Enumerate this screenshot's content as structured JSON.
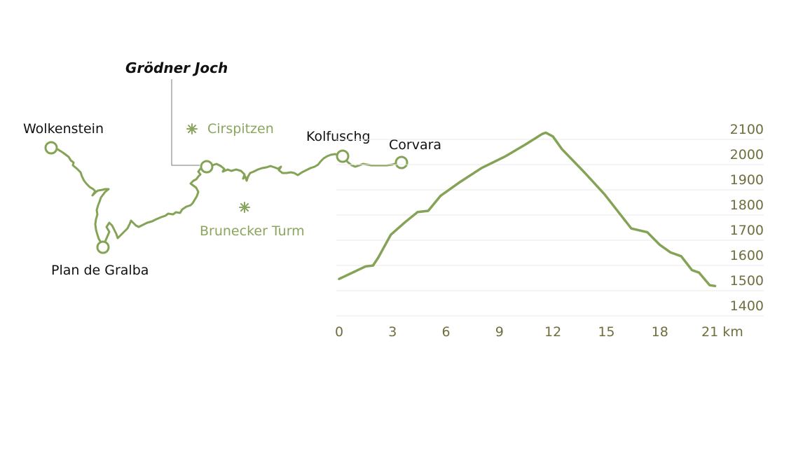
{
  "colors": {
    "route": "#84a356",
    "axis_text": "#6f6e3f",
    "grid": "#e8e8e8",
    "label": "#111111",
    "peak": "#8aa55e"
  },
  "map": {
    "places": [
      "Wolkenstein",
      "Plan de Gralba",
      "Kolfuschg",
      "Corvara"
    ],
    "pass": "Grödner Joch",
    "peaks": [
      "Cirspitzen",
      "Brunecker Turm"
    ],
    "peak_icon": "asterisk-peak-icon"
  },
  "chart_data": {
    "type": "line",
    "x_unit": "km",
    "x_ticks": [
      0,
      3,
      6,
      9,
      12,
      15,
      18,
      21
    ],
    "x_tick_labels": [
      "0",
      "3",
      "6",
      "9",
      "12",
      "15",
      "18",
      "21 km"
    ],
    "y_ticks": [
      1400,
      1500,
      1600,
      1700,
      1800,
      1900,
      2000,
      2100
    ],
    "xlim": [
      0,
      21.5
    ],
    "ylim": [
      1400,
      2130
    ],
    "grid": true,
    "series": [
      {
        "x": [
          0,
          1.5,
          1.9,
          2.2,
          2.9,
          3.7,
          4.4,
          5,
          5.7,
          6.8,
          8,
          9.3,
          10.5,
          11.4,
          11.6,
          12,
          12.5,
          13.8,
          14.9,
          16.4,
          17.3,
          18,
          18.6,
          19.2,
          19.8,
          20.2,
          20.8,
          21.1
        ],
        "y": [
          1505,
          1555,
          1558,
          1590,
          1680,
          1730,
          1770,
          1775,
          1835,
          1890,
          1945,
          1990,
          2040,
          2080,
          2085,
          2070,
          2020,
          1925,
          1840,
          1705,
          1690,
          1640,
          1610,
          1595,
          1540,
          1530,
          1480,
          1477
        ]
      }
    ]
  }
}
